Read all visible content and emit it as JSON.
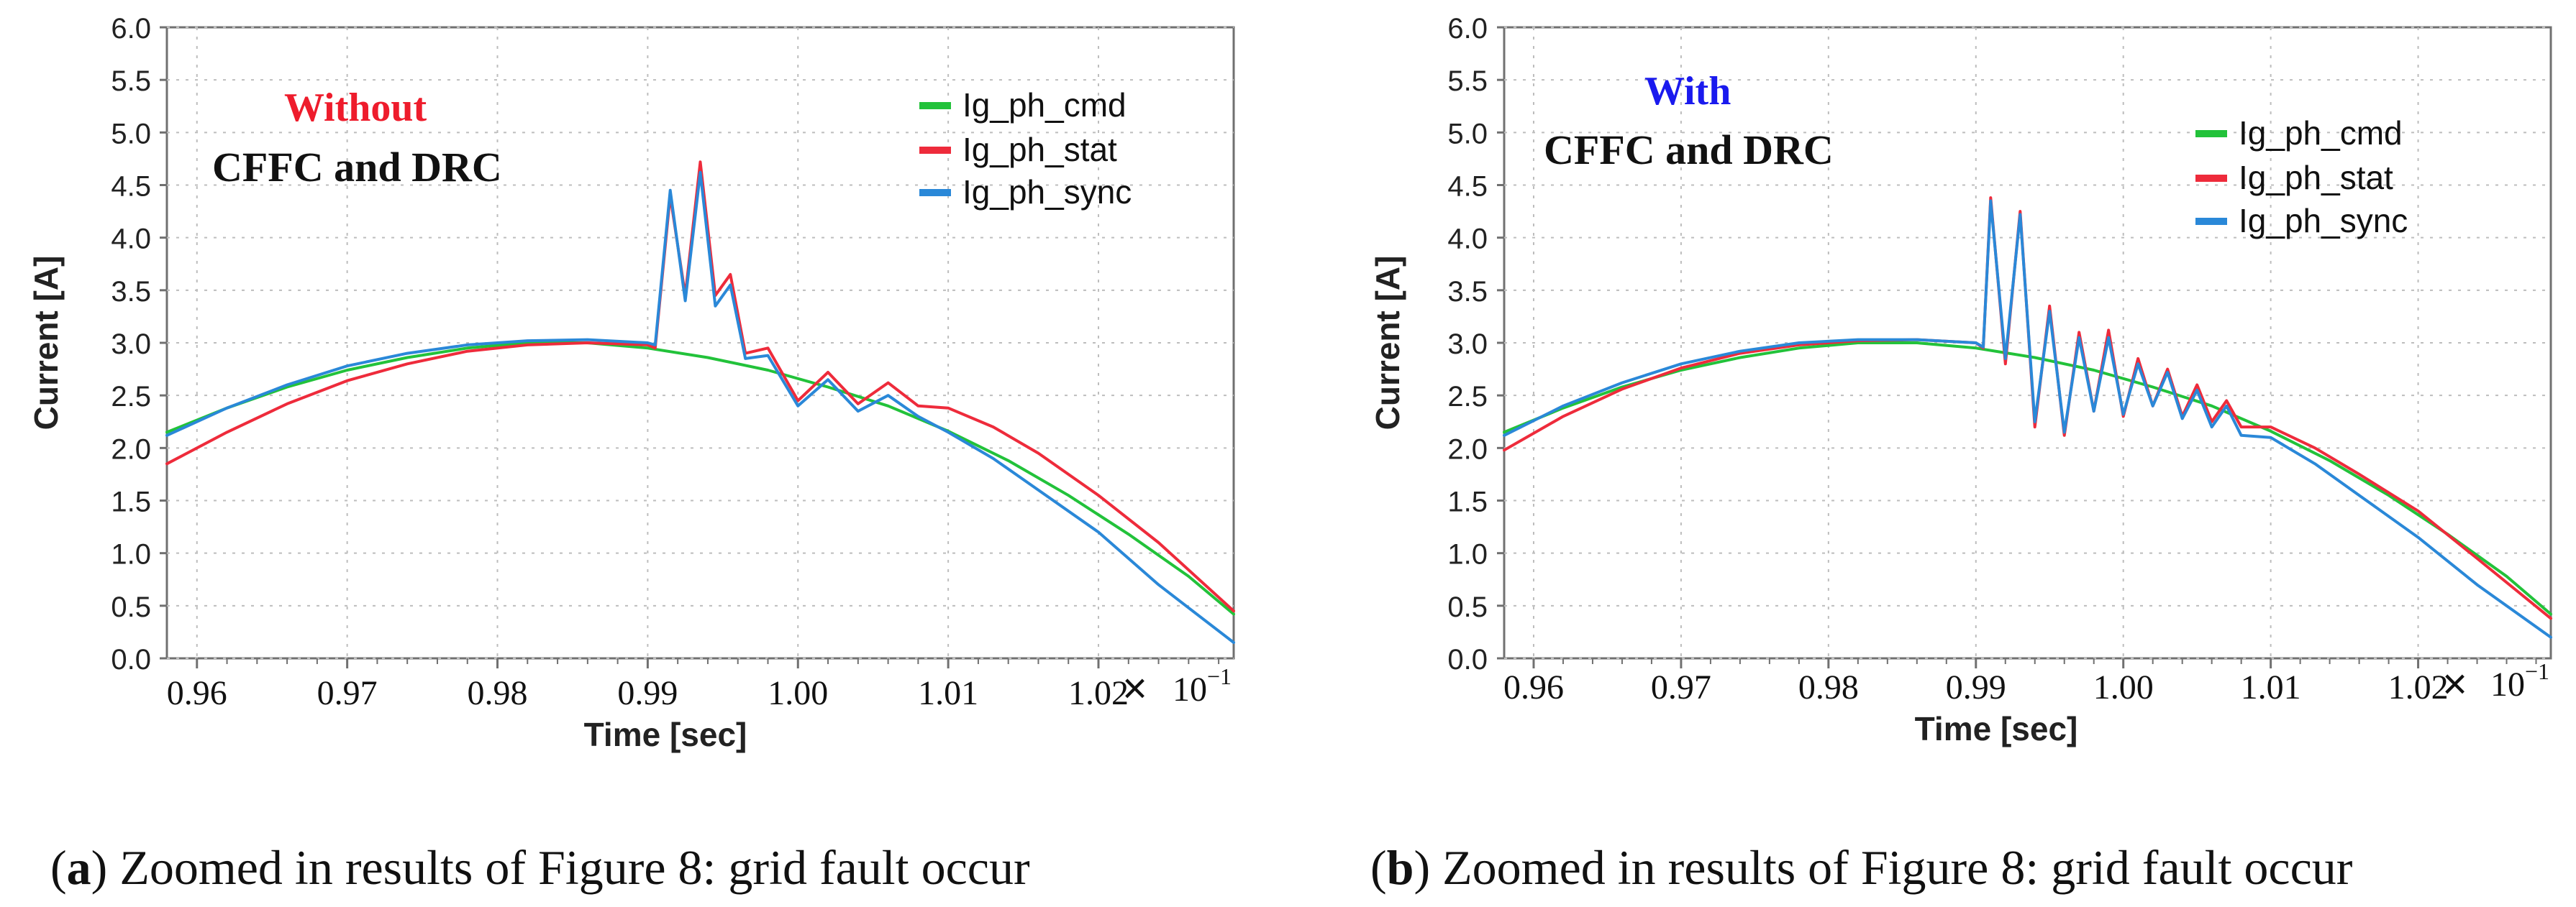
{
  "chart_data": [
    {
      "type": "line",
      "panel_label": "a",
      "caption": "Zoomed in results of Figure 8: grid fault occur",
      "annotation": {
        "line1": "Without",
        "line1_color": "#ee1c2c",
        "line2": "CFFC and DRC"
      },
      "xlabel": "Time [sec]",
      "ylabel": "Current [A]",
      "x_multiplier": "10",
      "x_multiplier_exp": "−1",
      "x_multiplier_sign": "×",
      "xlim": [
        0.958,
        1.029
      ],
      "ylim": [
        0.0,
        6.0
      ],
      "xticks": [
        0.96,
        0.97,
        0.98,
        0.99,
        1.0,
        1.01,
        1.02
      ],
      "xtick_labels": [
        "0.96",
        "0.97",
        "0.98",
        "0.99",
        "1.00",
        "1.01",
        "1.02"
      ],
      "yticks": [
        0.0,
        0.5,
        1.0,
        1.5,
        2.0,
        2.5,
        3.0,
        3.5,
        4.0,
        4.5,
        5.0,
        5.5,
        6.0
      ],
      "ytick_labels": [
        "0.0",
        "0.5",
        "1.0",
        "1.5",
        "2.0",
        "2.5",
        "3.0",
        "3.5",
        "4.0",
        "4.5",
        "5.0",
        "5.5",
        "6.0"
      ],
      "grid": true,
      "legend_position": "top-right",
      "fault_time": 0.9905,
      "series": [
        {
          "name": "Ig_ph_cmd",
          "color": "#22c23a",
          "x": [
            0.958,
            0.962,
            0.966,
            0.97,
            0.974,
            0.978,
            0.982,
            0.986,
            0.99,
            0.994,
            0.998,
            1.002,
            1.006,
            1.01,
            1.014,
            1.018,
            1.022,
            1.026,
            1.029
          ],
          "y": [
            2.15,
            2.38,
            2.58,
            2.74,
            2.86,
            2.95,
            3.0,
            3.0,
            2.95,
            2.86,
            2.74,
            2.58,
            2.4,
            2.16,
            1.88,
            1.55,
            1.18,
            0.78,
            0.42
          ]
        },
        {
          "name": "Ig_ph_stat",
          "color": "#ee2b3b",
          "x": [
            0.958,
            0.962,
            0.966,
            0.97,
            0.974,
            0.978,
            0.982,
            0.986,
            0.99,
            0.9905,
            0.9915,
            0.9925,
            0.9935,
            0.9945,
            0.9955,
            0.9965,
            0.998,
            1.0,
            1.002,
            1.004,
            1.006,
            1.008,
            1.01,
            1.013,
            1.016,
            1.02,
            1.024,
            1.029
          ],
          "y": [
            1.85,
            2.15,
            2.42,
            2.64,
            2.8,
            2.92,
            2.98,
            3.0,
            2.98,
            2.95,
            4.4,
            3.45,
            4.72,
            3.45,
            3.65,
            2.9,
            2.95,
            2.45,
            2.72,
            2.42,
            2.62,
            2.4,
            2.38,
            2.2,
            1.95,
            1.55,
            1.1,
            0.45
          ]
        },
        {
          "name": "Ig_ph_sync",
          "color": "#2a88d8",
          "x": [
            0.958,
            0.962,
            0.966,
            0.97,
            0.974,
            0.978,
            0.982,
            0.986,
            0.99,
            0.9905,
            0.9915,
            0.9925,
            0.9935,
            0.9945,
            0.9955,
            0.9965,
            0.998,
            1.0,
            1.002,
            1.004,
            1.006,
            1.008,
            1.01,
            1.013,
            1.016,
            1.02,
            1.024,
            1.029
          ],
          "y": [
            2.12,
            2.38,
            2.6,
            2.78,
            2.9,
            2.98,
            3.02,
            3.03,
            3.0,
            2.98,
            4.45,
            3.4,
            4.62,
            3.35,
            3.55,
            2.85,
            2.88,
            2.4,
            2.65,
            2.35,
            2.5,
            2.3,
            2.15,
            1.9,
            1.6,
            1.2,
            0.7,
            0.15
          ]
        }
      ]
    },
    {
      "type": "line",
      "panel_label": "b",
      "caption": "Zoomed in results of Figure 8: grid fault occur",
      "annotation": {
        "line1": "With",
        "line1_color": "#1a1aee",
        "line2": "CFFC and DRC"
      },
      "xlabel": "Time [sec]",
      "ylabel": "Current [A]",
      "x_multiplier": "10",
      "x_multiplier_exp": "−1",
      "x_multiplier_sign": "×",
      "xlim": [
        0.958,
        1.029
      ],
      "ylim": [
        0.0,
        6.0
      ],
      "xticks": [
        0.96,
        0.97,
        0.98,
        0.99,
        1.0,
        1.01,
        1.02
      ],
      "xtick_labels": [
        "0.96",
        "0.97",
        "0.98",
        "0.99",
        "1.00",
        "1.01",
        "1.02"
      ],
      "yticks": [
        0.0,
        0.5,
        1.0,
        1.5,
        2.0,
        2.5,
        3.0,
        3.5,
        4.0,
        4.5,
        5.0,
        5.5,
        6.0
      ],
      "ytick_labels": [
        "0.0",
        "0.5",
        "1.0",
        "1.5",
        "2.0",
        "2.5",
        "3.0",
        "3.5",
        "4.0",
        "4.5",
        "5.0",
        "5.5",
        "6.0"
      ],
      "grid": true,
      "legend_position": "top-right",
      "fault_time": 0.9905,
      "series": [
        {
          "name": "Ig_ph_cmd",
          "color": "#22c23a",
          "x": [
            0.958,
            0.962,
            0.966,
            0.97,
            0.974,
            0.978,
            0.982,
            0.986,
            0.99,
            0.994,
            0.998,
            1.002,
            1.006,
            1.01,
            1.014,
            1.018,
            1.022,
            1.026,
            1.029
          ],
          "y": [
            2.15,
            2.38,
            2.58,
            2.74,
            2.86,
            2.95,
            3.0,
            3.0,
            2.95,
            2.86,
            2.74,
            2.58,
            2.4,
            2.16,
            1.88,
            1.55,
            1.18,
            0.78,
            0.42
          ]
        },
        {
          "name": "Ig_ph_stat",
          "color": "#ee2b3b",
          "x": [
            0.958,
            0.962,
            0.966,
            0.97,
            0.974,
            0.978,
            0.982,
            0.986,
            0.99,
            0.9905,
            0.991,
            0.992,
            0.993,
            0.994,
            0.995,
            0.996,
            0.997,
            0.998,
            0.999,
            1.0,
            1.001,
            1.002,
            1.003,
            1.004,
            1.005,
            1.006,
            1.007,
            1.008,
            1.01,
            1.013,
            1.016,
            1.02,
            1.024,
            1.029
          ],
          "y": [
            1.98,
            2.3,
            2.56,
            2.76,
            2.9,
            2.98,
            3.02,
            3.03,
            3.0,
            2.95,
            4.38,
            2.8,
            4.25,
            2.2,
            3.35,
            2.12,
            3.1,
            2.35,
            3.12,
            2.3,
            2.85,
            2.4,
            2.75,
            2.3,
            2.6,
            2.25,
            2.45,
            2.2,
            2.2,
            2.0,
            1.75,
            1.4,
            0.95,
            0.38
          ]
        },
        {
          "name": "Ig_ph_sync",
          "color": "#2a88d8",
          "x": [
            0.958,
            0.962,
            0.966,
            0.97,
            0.974,
            0.978,
            0.982,
            0.986,
            0.99,
            0.9905,
            0.991,
            0.992,
            0.993,
            0.994,
            0.995,
            0.996,
            0.997,
            0.998,
            0.999,
            1.0,
            1.001,
            1.002,
            1.003,
            1.004,
            1.005,
            1.006,
            1.007,
            1.008,
            1.01,
            1.013,
            1.016,
            1.02,
            1.024,
            1.029
          ],
          "y": [
            2.12,
            2.4,
            2.62,
            2.8,
            2.92,
            3.0,
            3.03,
            3.03,
            3.0,
            2.96,
            4.35,
            2.85,
            4.22,
            2.25,
            3.3,
            2.15,
            3.05,
            2.35,
            3.05,
            2.32,
            2.8,
            2.4,
            2.72,
            2.28,
            2.55,
            2.2,
            2.4,
            2.12,
            2.1,
            1.85,
            1.55,
            1.15,
            0.7,
            0.2
          ]
        }
      ]
    }
  ]
}
